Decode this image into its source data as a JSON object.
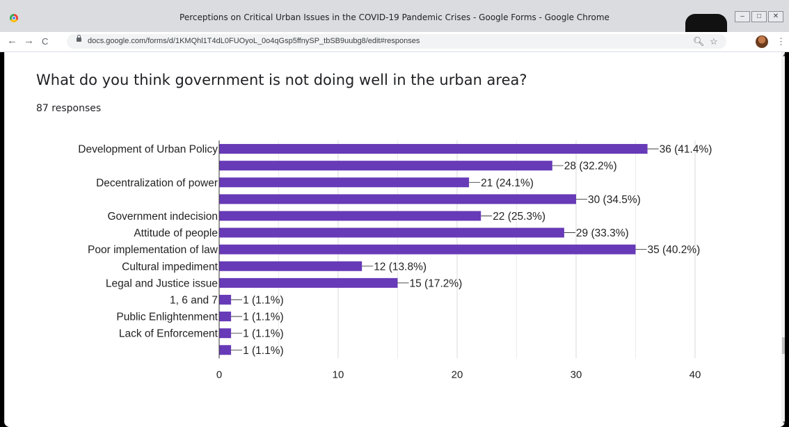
{
  "window": {
    "title": "Perceptions on Critical Urban Issues in the COVID-19 Pandemic Crises - Google Forms - Google Chrome",
    "controls": [
      "–",
      "□",
      "✕"
    ]
  },
  "toolbar": {
    "back": "←",
    "forward": "→",
    "reload": "C",
    "url": "docs.google.com/forms/d/1KMQhl1T4dL0FUOyoL_0o4qGsp5ffnySP_tbSB9uubg8/edit#responses",
    "icons": [
      "lock-icon",
      "zoom-icon",
      "star-icon",
      "avatar",
      "more-icon"
    ]
  },
  "question": {
    "title": "What do you think government is not doing well in the urban area?",
    "responses": "87 responses"
  },
  "colors": {
    "bar": "#673ab7",
    "grid": "#e0e0e0"
  },
  "chart_data": {
    "type": "bar",
    "orientation": "horizontal",
    "categories": [
      "Development of Urban Policy",
      "",
      "Decentralization of power",
      "",
      "Government indecision",
      "Attitude of people",
      "Poor implementation of law",
      "Cultural impediment",
      "Legal and Justice issue",
      "1, 6 and 7",
      "Public Enlightenment",
      "Lack of Enforcement",
      ""
    ],
    "values": [
      36,
      28,
      21,
      30,
      22,
      29,
      35,
      12,
      15,
      1,
      1,
      1,
      1
    ],
    "value_labels": [
      "36 (41.4%)",
      "28 (32.2%)",
      "21 (24.1%)",
      "30 (34.5%)",
      "22 (25.3%)",
      "29 (33.3%)",
      "35 (40.2%)",
      "12 (13.8%)",
      "15 (17.2%)",
      "1 (1.1%)",
      "1 (1.1%)",
      "1 (1.1%)",
      "1 (1.1%)"
    ],
    "xticks": [
      0,
      10,
      20,
      30,
      40
    ],
    "xlim": [
      0,
      40
    ],
    "grid": true,
    "legend": "none"
  }
}
